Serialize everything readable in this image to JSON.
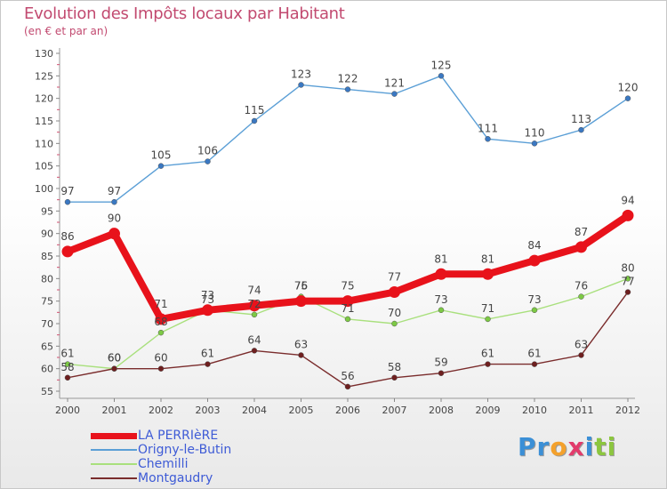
{
  "title": "Evolution des Impôts locaux par Habitant",
  "subtitle": "(en € et par an)",
  "logo": {
    "parts": [
      "Pr",
      "o",
      "x",
      "i",
      "ti"
    ],
    "colors": [
      "#3b8fd6",
      "#f4a12c",
      "#e23b6b",
      "#3b8fd6",
      "#8cc63f"
    ]
  },
  "chart_data": {
    "type": "line",
    "title": "Evolution des Impôts locaux par Habitant",
    "subtitle": "(en € et par an)",
    "x": [
      "2000",
      "2001",
      "2002",
      "2003",
      "2004",
      "2005",
      "2006",
      "2007",
      "2008",
      "2009",
      "2010",
      "2011",
      "2012"
    ],
    "ylim": [
      55,
      130
    ],
    "yticks": [
      55,
      60,
      65,
      70,
      75,
      80,
      85,
      90,
      95,
      100,
      105,
      110,
      115,
      120,
      125,
      130
    ],
    "grid": false,
    "legend_position": "bottom-left",
    "series": [
      {
        "name": "Origny-le-Butin",
        "color": "#5b9fd6",
        "point_color": "#3a78c2",
        "thick": false,
        "values": [
          97,
          97,
          105,
          106,
          115,
          123,
          122,
          121,
          125,
          111,
          110,
          113,
          120
        ],
        "labels": [
          "97",
          "97",
          "105",
          "106",
          "115",
          "123",
          "122",
          "121",
          "125",
          "111",
          "110",
          "113",
          "120"
        ]
      },
      {
        "name": "Chemilli",
        "color": "#a9e07d",
        "point_color": "#7cc944",
        "thick": false,
        "values": [
          61,
          60,
          68,
          73,
          72,
          76,
          71,
          70,
          73,
          71,
          73,
          76,
          80
        ],
        "labels": [
          "61",
          "60",
          "68",
          "73",
          "72",
          "76",
          "71",
          "70",
          "73",
          "71",
          "73",
          "76",
          "80"
        ]
      },
      {
        "name": "Montgaudry",
        "color": "#7a2c2c",
        "point_color": "#6e1f1f",
        "thick": false,
        "values": [
          58,
          60,
          60,
          61,
          64,
          63,
          56,
          58,
          59,
          61,
          61,
          63,
          77
        ],
        "labels": [
          "58",
          "60",
          "60",
          "61",
          "64",
          "63",
          "56",
          "58",
          "59",
          "61",
          "61",
          "63",
          "77"
        ]
      },
      {
        "name": "LA PERRIèRE",
        "color": "#e8121b",
        "point_color": "#e8121b",
        "thick": true,
        "values": [
          86,
          90,
          71,
          73,
          74,
          75,
          75,
          77,
          81,
          81,
          84,
          87,
          94
        ],
        "labels": [
          "86",
          "90",
          "71",
          "73",
          "74",
          "75",
          "75",
          "77",
          "81",
          "81",
          "84",
          "87",
          "94"
        ]
      }
    ]
  },
  "legend": {
    "items": [
      {
        "label": "LA PERRIèRE",
        "color": "#e8121b"
      },
      {
        "label": "Origny-le-Butin",
        "color": "#5b9fd6"
      },
      {
        "label": "Chemilli",
        "color": "#a9e07d"
      },
      {
        "label": "Montgaudry",
        "color": "#7a2c2c"
      }
    ]
  }
}
